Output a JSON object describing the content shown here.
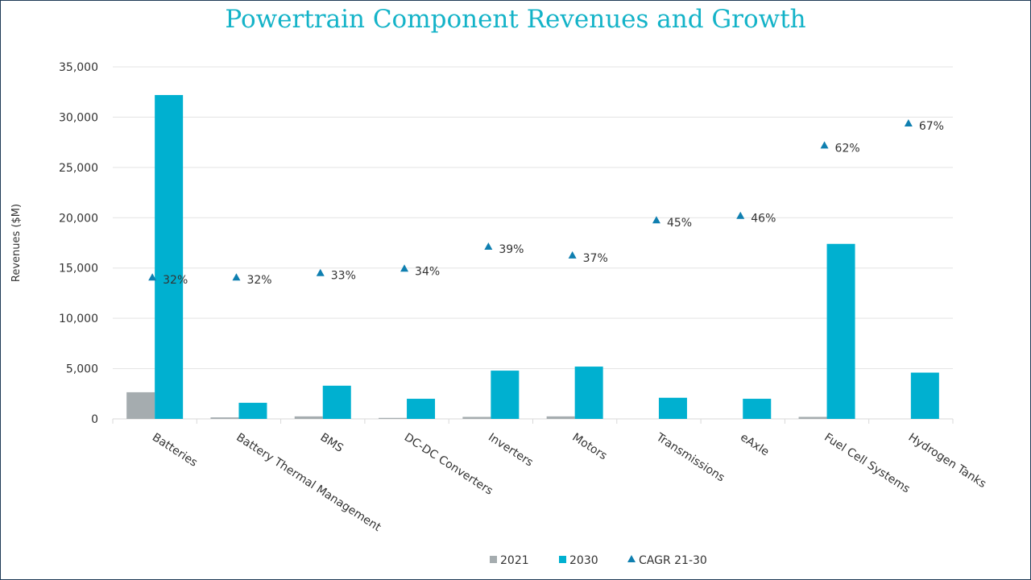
{
  "chart_data": {
    "type": "bar",
    "title": "Powertrain Component Revenues and Growth",
    "xlabel": "",
    "ylabel": "Revenues ($M)",
    "ylim": [
      0,
      35000
    ],
    "yticks": [
      "0",
      "5,000",
      "10,000",
      "15,000",
      "20,000",
      "25,000",
      "30,000",
      "35,000"
    ],
    "y2lim": [
      0,
      80
    ],
    "grid": true,
    "legend_position": "bottom",
    "categories": [
      "Batteries",
      "Battery Thermal Management",
      "BMS",
      "DC-DC Converters",
      "Inverters",
      "Motors",
      "Transmissions",
      "eAxle",
      "Fuel Cell Systems",
      "Hydrogen Tanks"
    ],
    "series": [
      {
        "name": "2021",
        "type": "bar",
        "color": "#a5acaf",
        "values": [
          2650,
          150,
          250,
          100,
          200,
          250,
          0,
          0,
          200,
          0
        ]
      },
      {
        "name": "2030",
        "type": "bar",
        "color": "#00b0d0",
        "values": [
          32200,
          1600,
          3300,
          2000,
          4800,
          5200,
          2100,
          2000,
          17400,
          4600
        ]
      },
      {
        "name": "CAGR 21-30",
        "type": "marker",
        "axis": "secondary",
        "color": "#0f7fb0",
        "values": [
          32,
          32,
          33,
          34,
          39,
          37,
          45,
          46,
          62,
          67
        ],
        "labels": [
          "32%",
          "32%",
          "33%",
          "34%",
          "39%",
          "37%",
          "45%",
          "46%",
          "62%",
          "67%"
        ]
      }
    ]
  }
}
